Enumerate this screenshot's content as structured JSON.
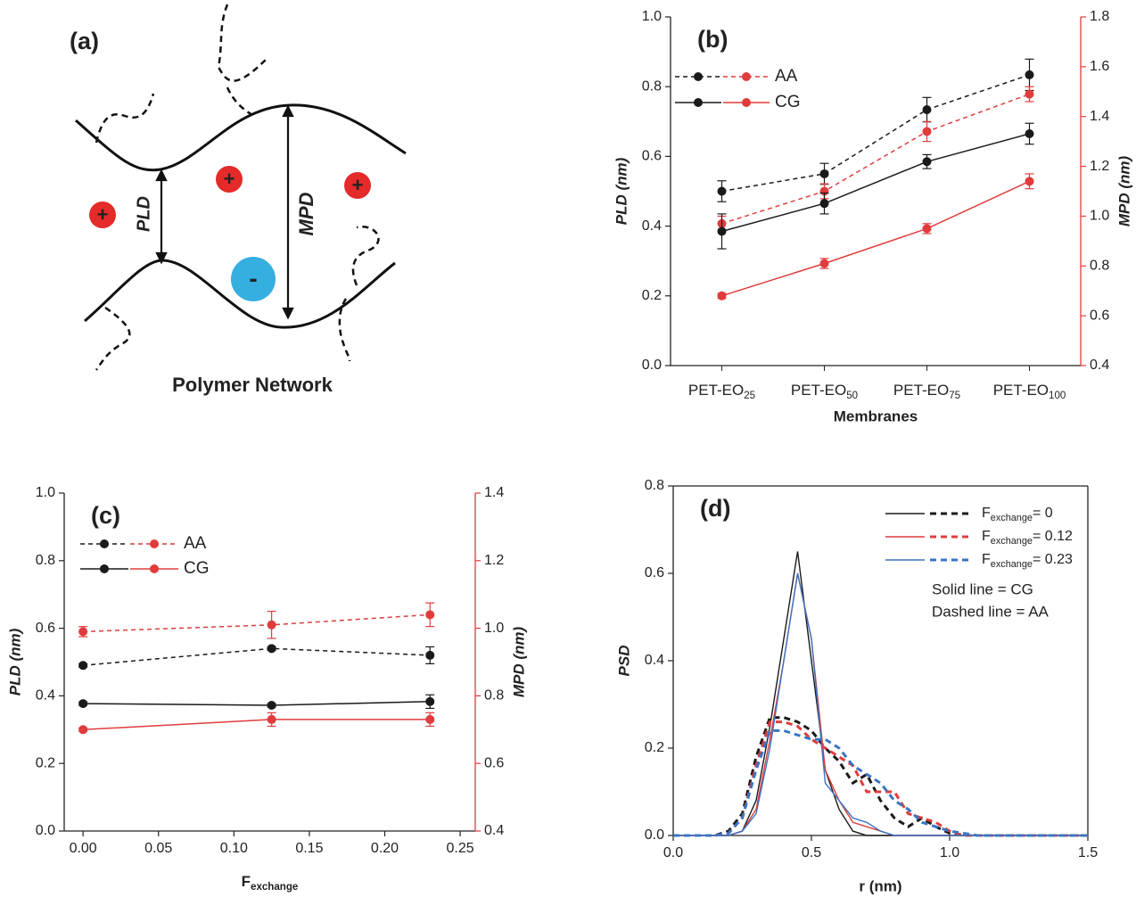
{
  "diagram": {
    "label": "(a)",
    "caption": "Polymer Network",
    "gap_label": "PLD",
    "width_label": "MPD",
    "charges": [
      "+",
      "+",
      "+",
      "-"
    ]
  },
  "chart_data": [
    {
      "type": "line",
      "label": "(b)",
      "xlabel": "Membranes",
      "ylabel": "PLD (nm)",
      "y2label": "MPD (nm)",
      "categories": [
        [
          "PET-EO",
          "25"
        ],
        [
          "PET-EO",
          "50"
        ],
        [
          "PET-EO",
          "75"
        ],
        [
          "PET-EO",
          "100"
        ]
      ],
      "ylim": [
        0,
        1
      ],
      "yticks": [
        {
          "value": 0,
          "label": "0.0"
        },
        0.2,
        0.4,
        0.6,
        0.8,
        {
          "value": 1,
          "label": "1.0"
        }
      ],
      "y2lim": [
        0.4,
        1.8
      ],
      "y2ticks": [
        0.4,
        0.6,
        0.8,
        {
          "value": 1,
          "label": "1.0"
        },
        1.2,
        1.4,
        1.6,
        1.8
      ],
      "legend_loc": "upper left",
      "markers": true,
      "frame": false,
      "series": [
        {
          "name": "AA",
          "dashed": true,
          "lines": [
            {
              "color": "#1a1a1a",
              "values": [
                0.5,
                0.55,
                0.734,
                0.834
              ],
              "errors": [
                0.03,
                0.03,
                0.035,
                0.045
              ]
            },
            {
              "color": "#e03c3c",
              "axis": "y2",
              "values": [
                0.97,
                1.1,
                1.34,
                1.49
              ],
              "errors": [
                0.03,
                0.03,
                0.04,
                0.03
              ]
            }
          ]
        },
        {
          "name": "CG",
          "dashed": false,
          "lines": [
            {
              "color": "#1a1a1a",
              "values": [
                0.385,
                0.465,
                0.585,
                0.665
              ],
              "errors": [
                0.05,
                0.03,
                0.02,
                0.03
              ]
            },
            {
              "color": "#e03c3c",
              "axis": "y2",
              "values": [
                0.68,
                0.81,
                0.95,
                1.14
              ],
              "errors": [
                0.01,
                0.02,
                0.02,
                0.03
              ]
            }
          ]
        }
      ]
    },
    {
      "type": "line",
      "label": "(c)",
      "xlabel": [
        "F",
        "exchange"
      ],
      "ylabel": "PLD (nm)",
      "y2label": "MPD (nm)",
      "x": [
        0,
        0.125,
        0.23
      ],
      "xlim": [
        -0.0125,
        0.26
      ],
      "xticks": [
        {
          "value": 0,
          "label": "0.00"
        },
        0.05,
        {
          "value": 0.1,
          "label": "0.10"
        },
        0.15,
        {
          "value": 0.2,
          "label": "0.20"
        },
        0.25
      ],
      "ylim": [
        0,
        1
      ],
      "yticks": [
        {
          "value": 0,
          "label": "0.0"
        },
        0.2,
        0.4,
        0.6,
        0.8,
        {
          "value": 1,
          "label": "1.0"
        }
      ],
      "y2lim": [
        0.4,
        1.4
      ],
      "y2ticks": [
        0.4,
        0.6,
        0.8,
        {
          "value": 1,
          "label": "1.0"
        },
        1.2,
        1.4
      ],
      "legend_loc": "upper left",
      "markers": true,
      "frame": false,
      "series": [
        {
          "name": "AA",
          "dashed": true,
          "lines": [
            {
              "color": "#1a1a1a",
              "values": [
                0.49,
                0.54,
                0.52
              ],
              "errors": [
                0.005,
                0.005,
                0.025
              ]
            },
            {
              "color": "#e03c3c",
              "axis": "y2",
              "values": [
                0.99,
                1.01,
                1.04
              ],
              "errors": [
                0.015,
                0.04,
                0.035
              ]
            }
          ]
        },
        {
          "name": "CG",
          "dashed": false,
          "lines": [
            {
              "color": "#1a1a1a",
              "values": [
                0.377,
                0.372,
                0.383
              ],
              "errors": [
                0.005,
                0.005,
                0.02
              ]
            },
            {
              "color": "#e03c3c",
              "axis": "y2",
              "values": [
                0.7,
                0.73,
                0.73
              ],
              "errors": [
                0.005,
                0.02,
                0.02
              ]
            }
          ]
        }
      ]
    },
    {
      "type": "line",
      "label": "(d)",
      "xlabel": "r (nm)",
      "ylabel": "PSD",
      "x": [
        0,
        0.05,
        0.1,
        0.15,
        0.2,
        0.25,
        0.3,
        0.35,
        0.4,
        0.45,
        0.5,
        0.55,
        0.6,
        0.65,
        0.7,
        0.75,
        0.8,
        0.85,
        0.9,
        0.95,
        1.0,
        1.05,
        1.1,
        1.15,
        1.2,
        1.25,
        1.3,
        1.35,
        1.4,
        1.45,
        1.5
      ],
      "xlim": [
        0,
        1.5
      ],
      "xticks": [
        {
          "value": 0,
          "label": "0.0"
        },
        0.5,
        {
          "value": 1,
          "label": "1.0"
        },
        1.5
      ],
      "ylim": [
        0,
        0.8
      ],
      "yticks": [
        {
          "value": 0,
          "label": "0.0"
        },
        0.2,
        0.4,
        0.6,
        0.8
      ],
      "legend_loc": "upper right",
      "markers": false,
      "frame": true,
      "annotations": [
        "Solid line = CG",
        "Dashed line = AA"
      ],
      "series": [
        {
          "name": [
            "F",
            "exchange",
            "= 0"
          ],
          "color": "#1a1a1a",
          "lines": [
            {
              "dashed": false,
              "values": [
                0,
                0,
                0,
                0,
                0,
                0.01,
                0.08,
                0.25,
                0.45,
                0.65,
                0.4,
                0.15,
                0.06,
                0.01,
                0,
                0,
                0,
                0,
                0,
                0,
                0,
                0,
                0,
                0,
                0,
                0,
                0,
                0,
                0,
                0,
                0
              ]
            },
            {
              "dashed": true,
              "values": [
                0,
                0,
                0,
                0,
                0.01,
                0.05,
                0.18,
                0.27,
                0.27,
                0.26,
                0.24,
                0.2,
                0.17,
                0.12,
                0.14,
                0.08,
                0.04,
                0.02,
                0.04,
                0.02,
                0.005,
                0,
                0,
                0,
                0,
                0,
                0,
                0,
                0,
                0,
                0
              ]
            }
          ]
        },
        {
          "name": [
            "F",
            "exchange",
            "= 0.12"
          ],
          "color": "#e03c3c",
          "lines": [
            {
              "dashed": false,
              "values": [
                0,
                0,
                0,
                0,
                0,
                0.01,
                0.06,
                0.22,
                0.4,
                0.6,
                0.45,
                0.15,
                0.08,
                0.03,
                0.02,
                0.01,
                0,
                0,
                0,
                0,
                0,
                0,
                0,
                0,
                0,
                0,
                0,
                0,
                0,
                0,
                0
              ]
            },
            {
              "dashed": true,
              "values": [
                0,
                0,
                0,
                0,
                0.005,
                0.04,
                0.16,
                0.26,
                0.26,
                0.25,
                0.22,
                0.2,
                0.18,
                0.16,
                0.1,
                0.1,
                0.1,
                0.05,
                0.04,
                0.03,
                0.01,
                0,
                0,
                0,
                0,
                0,
                0,
                0,
                0,
                0,
                0
              ]
            }
          ]
        },
        {
          "name": [
            "F",
            "exchange",
            "= 0.23"
          ],
          "color": "#3a74c4",
          "lines": [
            {
              "dashed": false,
              "values": [
                0,
                0,
                0,
                0,
                0,
                0.01,
                0.05,
                0.2,
                0.4,
                0.6,
                0.45,
                0.12,
                0.08,
                0.04,
                0.03,
                0.01,
                0,
                0,
                0,
                0,
                0,
                0,
                0,
                0,
                0,
                0,
                0,
                0,
                0,
                0,
                0
              ]
            },
            {
              "dashed": true,
              "values": [
                0,
                0,
                0,
                0,
                0.005,
                0.04,
                0.15,
                0.24,
                0.24,
                0.23,
                0.22,
                0.22,
                0.2,
                0.16,
                0.14,
                0.12,
                0.08,
                0.06,
                0.03,
                0.02,
                0.01,
                0.005,
                0,
                0,
                0,
                0,
                0,
                0,
                0,
                0,
                0
              ]
            }
          ]
        }
      ]
    }
  ]
}
